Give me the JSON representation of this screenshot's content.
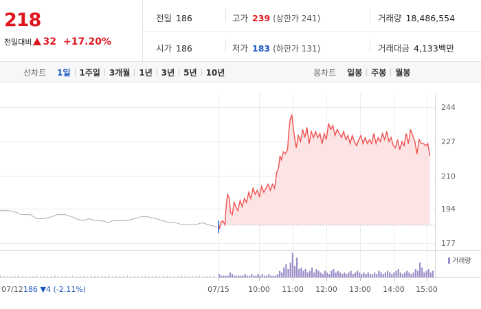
{
  "quote": {
    "price": "218",
    "change_label": "전일대비",
    "change_amount": "32",
    "change_percent": "+17.20%"
  },
  "stats": {
    "prev_close": {
      "label": "전일",
      "value": "186"
    },
    "open": {
      "label": "시가",
      "value": "186"
    },
    "high": {
      "label": "고가",
      "value": "239",
      "limit": "(상한가 241)"
    },
    "low": {
      "label": "저가",
      "value": "183",
      "limit": "(하한가 131)"
    },
    "volume": {
      "label": "거래량",
      "value": "18,486,554"
    },
    "amount": {
      "label": "거래대금",
      "value": "4,133",
      "unit": "백만"
    }
  },
  "tabs": {
    "line_title": "선차트",
    "line": [
      "1일",
      "1주일",
      "3개월",
      "1년",
      "3년",
      "5년",
      "10년"
    ],
    "line_active": "1일",
    "candle_title": "봉차트",
    "candle": [
      "일봉",
      "주봉",
      "월봉"
    ]
  },
  "colors": {
    "up": "#e0161f",
    "down": "#1a55c2",
    "line": "#f05050",
    "fill": "#fde4e4",
    "prev_line": "#aaaaaa",
    "volume": "#9b8cc9"
  },
  "chart_data": {
    "type": "line",
    "ylim": [
      177,
      244
    ],
    "y_ticks": [
      "244",
      "227",
      "210",
      "194",
      "177"
    ],
    "x_ticks": [
      "07/12",
      "07/15",
      "10:00",
      "11:00",
      "12:00",
      "13:00",
      "14:00",
      "15:00"
    ],
    "baseline": 186,
    "prev_day_summary": {
      "date": "07/12",
      "close": "186",
      "change": "▼4",
      "percent": "(-2.11%)"
    },
    "volume_label": "거래량",
    "prev_day_series": [
      [
        0,
        193
      ],
      [
        4,
        193
      ],
      [
        8,
        192
      ],
      [
        10,
        191
      ],
      [
        14,
        191
      ],
      [
        17,
        189
      ],
      [
        20,
        189
      ],
      [
        24,
        190
      ],
      [
        26,
        191
      ],
      [
        30,
        191
      ],
      [
        33,
        190
      ],
      [
        35,
        189
      ],
      [
        38,
        188
      ],
      [
        41,
        189
      ],
      [
        44,
        188
      ],
      [
        47,
        188
      ],
      [
        50,
        187
      ],
      [
        52,
        188
      ],
      [
        55,
        188
      ],
      [
        58,
        188
      ],
      [
        62,
        189
      ],
      [
        65,
        190
      ],
      [
        68,
        190
      ],
      [
        72,
        189
      ],
      [
        75,
        188
      ],
      [
        78,
        187
      ],
      [
        81,
        187
      ],
      [
        84,
        186
      ],
      [
        87,
        186
      ],
      [
        90,
        186
      ],
      [
        93,
        187
      ],
      [
        96,
        186
      ],
      [
        100,
        185
      ]
    ],
    "today_series": [
      [
        0,
        186
      ],
      [
        0.5,
        184
      ],
      [
        1,
        187
      ],
      [
        2,
        188
      ],
      [
        3,
        186
      ],
      [
        3.6,
        196
      ],
      [
        4.2,
        201
      ],
      [
        5,
        199
      ],
      [
        5.6,
        192
      ],
      [
        6.4,
        191
      ],
      [
        7.2,
        197
      ],
      [
        8,
        195
      ],
      [
        9,
        193
      ],
      [
        10,
        198
      ],
      [
        11,
        195
      ],
      [
        12,
        199
      ],
      [
        13,
        197
      ],
      [
        14,
        202
      ],
      [
        15,
        199
      ],
      [
        16,
        204
      ],
      [
        17,
        201
      ],
      [
        18,
        203
      ],
      [
        19,
        200
      ],
      [
        20,
        205
      ],
      [
        21,
        202
      ],
      [
        22,
        204
      ],
      [
        23,
        206
      ],
      [
        24,
        203
      ],
      [
        25,
        206
      ],
      [
        26,
        204
      ],
      [
        27,
        212
      ],
      [
        27.8,
        214
      ],
      [
        28.5,
        220
      ],
      [
        29.2,
        218
      ],
      [
        30,
        222
      ],
      [
        31,
        221
      ],
      [
        32,
        223
      ],
      [
        32.6,
        232
      ],
      [
        33.2,
        238
      ],
      [
        34,
        240
      ],
      [
        35,
        231
      ],
      [
        36,
        224
      ],
      [
        37,
        230
      ],
      [
        38,
        227
      ],
      [
        39,
        233
      ],
      [
        40,
        229
      ],
      [
        41,
        234
      ],
      [
        42,
        226
      ],
      [
        43,
        232
      ],
      [
        44,
        229
      ],
      [
        45,
        232
      ],
      [
        46,
        229
      ],
      [
        47,
        231
      ],
      [
        48,
        226
      ],
      [
        49,
        231
      ],
      [
        50,
        228
      ],
      [
        51,
        236
      ],
      [
        52,
        233
      ],
      [
        53,
        235
      ],
      [
        54,
        230
      ],
      [
        55,
        233
      ],
      [
        56,
        231
      ],
      [
        57,
        229
      ],
      [
        58,
        232
      ],
      [
        59,
        228
      ],
      [
        60,
        230
      ],
      [
        61,
        226
      ],
      [
        62,
        230
      ],
      [
        63,
        227
      ],
      [
        64,
        225
      ],
      [
        65,
        228
      ],
      [
        66,
        230
      ],
      [
        67,
        226
      ],
      [
        68,
        229
      ],
      [
        69,
        226
      ],
      [
        70,
        228
      ],
      [
        71,
        226
      ],
      [
        72,
        231
      ],
      [
        73,
        226
      ],
      [
        74,
        229
      ],
      [
        75,
        227
      ],
      [
        76,
        231
      ],
      [
        77,
        228
      ],
      [
        78,
        232
      ],
      [
        79,
        227
      ],
      [
        80,
        229
      ],
      [
        81,
        225
      ],
      [
        82,
        224
      ],
      [
        83,
        228
      ],
      [
        84,
        223
      ],
      [
        85,
        227
      ],
      [
        86,
        225
      ],
      [
        87,
        231
      ],
      [
        88,
        226
      ],
      [
        89,
        233
      ],
      [
        90,
        230
      ],
      [
        91,
        227
      ],
      [
        92,
        221
      ],
      [
        93,
        228
      ],
      [
        94,
        226
      ],
      [
        95,
        226
      ],
      [
        96,
        225
      ],
      [
        97,
        226
      ],
      [
        98,
        220
      ]
    ],
    "today_volume": [
      2,
      1,
      1,
      1,
      1,
      3,
      2,
      1,
      1,
      1,
      1,
      1,
      2,
      1,
      1,
      2,
      1,
      1,
      2,
      1,
      2,
      1,
      1,
      2,
      1,
      1,
      1,
      2,
      4,
      3,
      6,
      8,
      5,
      9,
      15,
      7,
      12,
      5,
      6,
      4,
      5,
      3,
      4,
      6,
      3,
      5,
      4,
      3,
      2,
      4,
      3,
      2,
      4,
      5,
      3,
      4,
      3,
      2,
      3,
      2,
      3,
      4,
      2,
      3,
      4,
      3,
      2,
      3,
      2,
      3,
      2,
      2,
      3,
      2,
      4,
      3,
      2,
      3,
      4,
      3,
      2,
      3,
      4,
      5,
      3,
      2,
      3,
      4,
      3,
      2,
      3,
      5,
      4,
      9,
      6,
      3,
      4,
      5,
      3,
      4
    ]
  }
}
